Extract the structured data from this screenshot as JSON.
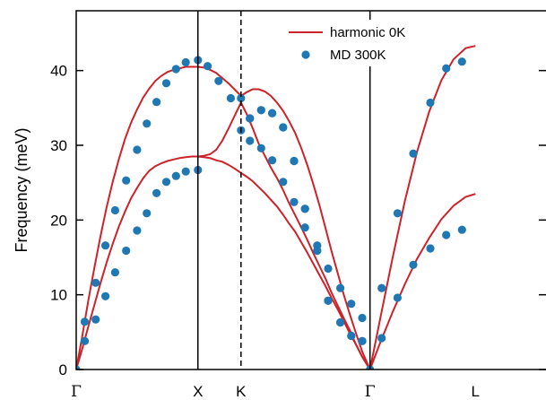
{
  "chart_data": {
    "type": "line",
    "title": "",
    "xlabel": "",
    "ylabel": "Frequency (meV)",
    "ylim": [
      0,
      48
    ],
    "yticks": [
      0,
      10,
      20,
      30,
      40
    ],
    "xlim": [
      0,
      3.86
    ],
    "high_symmetry_points": [
      {
        "label": "Γ",
        "x": 0.0,
        "line": "none"
      },
      {
        "label": "X",
        "x": 1.0,
        "line": "solid"
      },
      {
        "label": "K",
        "x": 1.354,
        "line": "dashed"
      },
      {
        "label": "Γ",
        "x": 2.414,
        "line": "solid"
      },
      {
        "label": "L",
        "x": 3.28,
        "line": "none"
      }
    ],
    "grid": false,
    "legend_position": "top",
    "colors": {
      "harmonic": "#cc2229",
      "md": "#1f77b4"
    },
    "series": [
      {
        "name": "harmonic 0K",
        "style": "line",
        "branches": [
          {
            "x": [
              0,
              0.05,
              0.1,
              0.15,
              0.2,
              0.25,
              0.3,
              0.35,
              0.4,
              0.45,
              0.5,
              0.55,
              0.6,
              0.65,
              0.7,
              0.75,
              0.8,
              0.85,
              0.9,
              0.95,
              1.0
            ],
            "y": [
              0,
              2.8,
              5.8,
              8.7,
              11.6,
              14.3,
              16.8,
              19.1,
              21.1,
              22.9,
              24.3,
              25.6,
              26.6,
              27.2,
              27.6,
              27.9,
              28.1,
              28.3,
              28.4,
              28.5,
              28.5
            ]
          },
          {
            "x": [
              0,
              0.05,
              0.1,
              0.15,
              0.2,
              0.25,
              0.3,
              0.35,
              0.4,
              0.45,
              0.5,
              0.55,
              0.6,
              0.65,
              0.7,
              0.75,
              0.8,
              0.85,
              0.9,
              0.95,
              1.0
            ],
            "y": [
              0,
              4.5,
              9.3,
              13.7,
              17.9,
              21.7,
              25.1,
              28.1,
              30.8,
              33.0,
              34.8,
              36.4,
              37.6,
              38.6,
              39.3,
              39.8,
              40.1,
              40.3,
              40.5,
              40.5,
              40.5
            ]
          },
          {
            "x": [
              1.0,
              1.05,
              1.1,
              1.15,
              1.2,
              1.25,
              1.3,
              1.354
            ],
            "y": [
              28.5,
              28.6,
              28.8,
              29.4,
              30.6,
              32.2,
              33.9,
              35.7
            ]
          },
          {
            "x": [
              1.0,
              1.05,
              1.1,
              1.15,
              1.2,
              1.25,
              1.3,
              1.354
            ],
            "y": [
              40.5,
              40.4,
              40.1,
              39.7,
              39.0,
              38.3,
              37.5,
              36.6
            ]
          },
          {
            "x": [
              1.0,
              1.05,
              1.1,
              1.15,
              1.2,
              1.25,
              1.3,
              1.354,
              1.4,
              1.45,
              1.5,
              1.55,
              1.6,
              1.65,
              1.7,
              1.75,
              1.8,
              1.85,
              1.9,
              1.95,
              2.0,
              2.05,
              2.1,
              2.15,
              2.2,
              2.25,
              2.3,
              2.35,
              2.414
            ],
            "y": [
              28.5,
              28.4,
              28.3,
              28.0,
              27.8,
              27.4,
              26.9,
              26.3,
              25.8,
              25.2,
              24.4,
              23.6,
              22.7,
              21.8,
              20.7,
              19.5,
              18.4,
              17.0,
              15.6,
              14.1,
              12.6,
              11.1,
              9.5,
              8.0,
              6.4,
              4.8,
              3.3,
              1.7,
              0
            ]
          },
          {
            "x": [
              1.354,
              1.4,
              1.45,
              1.5,
              1.55,
              1.6,
              1.65,
              1.7,
              1.75,
              1.8,
              1.85,
              1.9,
              1.95,
              2.0,
              2.05,
              2.1,
              2.15,
              2.2,
              2.25,
              2.3,
              2.35,
              2.414
            ],
            "y": [
              35.7,
              34.2,
              32.3,
              30.2,
              28.6,
              27.0,
              25.6,
              24.0,
              22.2,
              20.6,
              19.0,
              17.3,
              15.5,
              13.8,
              12.1,
              10.2,
              8.5,
              6.8,
              5.2,
              3.3,
              1.7,
              0
            ]
          },
          {
            "x": [
              1.354,
              1.4,
              1.45,
              1.5,
              1.55,
              1.6,
              1.65,
              1.7,
              1.75,
              1.8,
              1.85,
              1.9,
              1.95,
              2.0,
              2.05,
              2.1,
              2.15,
              2.2,
              2.25,
              2.3,
              2.35,
              2.414
            ],
            "y": [
              36.6,
              37.1,
              37.5,
              37.5,
              37.2,
              36.6,
              35.7,
              34.6,
              33.2,
              31.6,
              29.6,
              27.3,
              24.7,
              21.9,
              18.8,
              15.7,
              12.8,
              9.9,
              7.3,
              4.8,
              2.4,
              0
            ]
          },
          {
            "x": [
              2.414,
              2.5,
              2.6,
              2.7,
              2.8,
              2.9,
              3.0,
              3.1,
              3.2,
              3.28
            ],
            "y": [
              0,
              3.7,
              7.7,
              11.4,
              14.8,
              17.6,
              20.1,
              21.9,
              23.1,
              23.5
            ]
          },
          {
            "x": [
              2.414,
              2.5,
              2.6,
              2.7,
              2.8,
              2.9,
              3.0,
              3.1,
              3.2,
              3.28
            ],
            "y": [
              0,
              7.0,
              15.0,
              22.5,
              29.1,
              34.5,
              38.7,
              41.5,
              43.0,
              43.3
            ]
          }
        ]
      },
      {
        "name": "MD 300K",
        "style": "marker",
        "x": [
          0,
          0.07,
          0.16,
          0.24,
          0.32,
          0.41,
          0.5,
          0.58,
          0.66,
          0.74,
          0.82,
          0.9,
          1.0,
          0.07,
          0.16,
          0.24,
          0.32,
          0.41,
          0.5,
          0.58,
          0.66,
          0.74,
          0.82,
          0.9,
          1.0,
          1.08,
          1.17,
          1.27,
          1.354,
          1.427,
          1.52,
          1.61,
          1.7,
          1.79,
          1.88,
          1.98,
          2.07,
          2.17,
          2.26,
          2.35,
          2.414,
          1.354,
          1.427,
          1.52,
          1.61,
          1.7,
          1.79,
          1.88,
          1.98,
          2.07,
          2.17,
          2.26,
          2.35,
          1.427,
          1.52,
          1.61,
          1.7,
          1.79,
          1.88,
          1.98,
          2.07,
          2.17,
          2.26,
          2.35,
          2.51,
          2.64,
          2.77,
          2.91,
          3.04,
          3.17,
          2.51,
          2.64,
          2.77,
          2.91,
          3.04,
          3.17
        ],
        "y": [
          0,
          3.8,
          6.7,
          9.8,
          13.0,
          15.9,
          18.6,
          20.9,
          23.6,
          25.1,
          25.9,
          26.5,
          26.7,
          6.4,
          11.6,
          16.6,
          21.3,
          25.3,
          29.4,
          32.9,
          35.8,
          38.3,
          40.2,
          41.1,
          41.4,
          40.6,
          38.6,
          36.3,
          36.3,
          33.6,
          34.7,
          34.3,
          32.4,
          27.9,
          21.5,
          15.9,
          9.2,
          6.3,
          4.5,
          3.8,
          0,
          32.0,
          30.6,
          29.6,
          28.0,
          25.1,
          22.4,
          19.0,
          16.6,
          13.5,
          10.9,
          8.8,
          6.9,
          33.6,
          34.7,
          34.3,
          32.4,
          27.9,
          21.5,
          15.9,
          9.2,
          6.3,
          4.5,
          3.8,
          4.2,
          9.6,
          14.0,
          16.2,
          18.0,
          18.7,
          10.9,
          20.9,
          28.9,
          35.7,
          40.3,
          41.2
        ]
      }
    ]
  }
}
